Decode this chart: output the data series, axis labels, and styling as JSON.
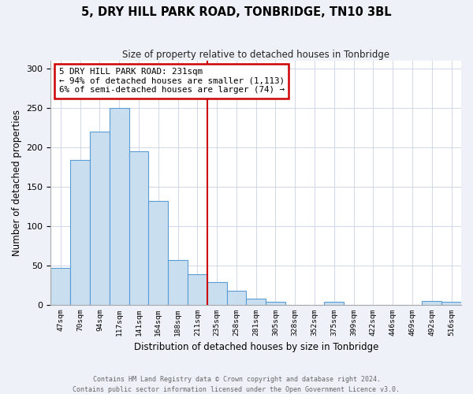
{
  "title": "5, DRY HILL PARK ROAD, TONBRIDGE, TN10 3BL",
  "subtitle": "Size of property relative to detached houses in Tonbridge",
  "xlabel": "Distribution of detached houses by size in Tonbridge",
  "ylabel": "Number of detached properties",
  "bin_labels": [
    "47sqm",
    "70sqm",
    "94sqm",
    "117sqm",
    "141sqm",
    "164sqm",
    "188sqm",
    "211sqm",
    "235sqm",
    "258sqm",
    "281sqm",
    "305sqm",
    "328sqm",
    "352sqm",
    "375sqm",
    "399sqm",
    "422sqm",
    "446sqm",
    "469sqm",
    "492sqm",
    "516sqm"
  ],
  "bar_heights": [
    47,
    184,
    220,
    250,
    195,
    132,
    57,
    39,
    29,
    18,
    8,
    4,
    0,
    0,
    4,
    0,
    0,
    0,
    0,
    5,
    4
  ],
  "bar_color": "#c9dff0",
  "bar_edge_color": "#5b9bd5",
  "vline_pos": 7.5,
  "vline_color": "#cc0000",
  "annotation_line1": "5 DRY HILL PARK ROAD: 231sqm",
  "annotation_line2": "← 94% of detached houses are smaller (1,113)",
  "annotation_line3": "6% of semi-detached houses are larger (74) →",
  "annotation_box_color": "#cc0000",
  "ylim": [
    0,
    310
  ],
  "yticks": [
    0,
    50,
    100,
    150,
    200,
    250,
    300
  ],
  "footer_line1": "Contains HM Land Registry data © Crown copyright and database right 2024.",
  "footer_line2": "Contains public sector information licensed under the Open Government Licence v3.0.",
  "background_color": "#eef2f8",
  "plot_bg_color": "#ffffff",
  "grid_color": "#d0d8e8"
}
